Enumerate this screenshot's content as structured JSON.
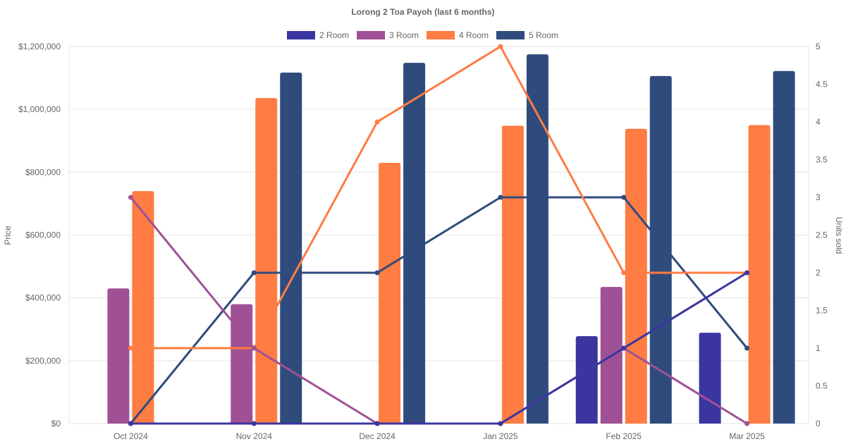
{
  "chart_data": {
    "type": "bar",
    "title": "Lorong 2 Toa Payoh (last 6 months)",
    "categories": [
      "Oct 2024",
      "Nov 2024",
      "Dec 2024",
      "Jan 2025",
      "Feb 2025",
      "Mar 2025"
    ],
    "ylabel": "Price",
    "y2label": "Units sold",
    "ylim": [
      0,
      1200000
    ],
    "y2lim": [
      0,
      5
    ],
    "yticks": [
      "$0",
      "$200,000",
      "$400,000",
      "$600,000",
      "$800,000",
      "$1,000,000",
      "$1,200,000"
    ],
    "y2ticks": [
      "0",
      "0.5",
      "1",
      "1.5",
      "2",
      "2.5",
      "3",
      "3.5",
      "4",
      "4.5",
      "5"
    ],
    "legend_position": "top",
    "grid": true,
    "series": [
      {
        "name": "2 Room",
        "color": "#3b35a0",
        "price": [
          null,
          null,
          null,
          null,
          278000,
          289000
        ],
        "units": [
          0,
          0,
          0,
          0,
          1,
          2
        ]
      },
      {
        "name": "3 Room",
        "color": "#a05195",
        "price": [
          430000,
          380000,
          null,
          null,
          435000,
          null
        ],
        "units": [
          3,
          1,
          0,
          0,
          1,
          0
        ]
      },
      {
        "name": "4 Room",
        "color": "#ff7c43",
        "price": [
          740000,
          1036000,
          830000,
          948000,
          938000,
          950000
        ],
        "units": [
          1,
          1,
          4,
          5,
          2,
          2
        ]
      },
      {
        "name": "5 Room",
        "color": "#2f4b7c",
        "price": [
          null,
          1117000,
          1148000,
          1175000,
          1106000,
          1122000
        ],
        "units": [
          0,
          2,
          2,
          3,
          3,
          1
        ]
      }
    ]
  }
}
